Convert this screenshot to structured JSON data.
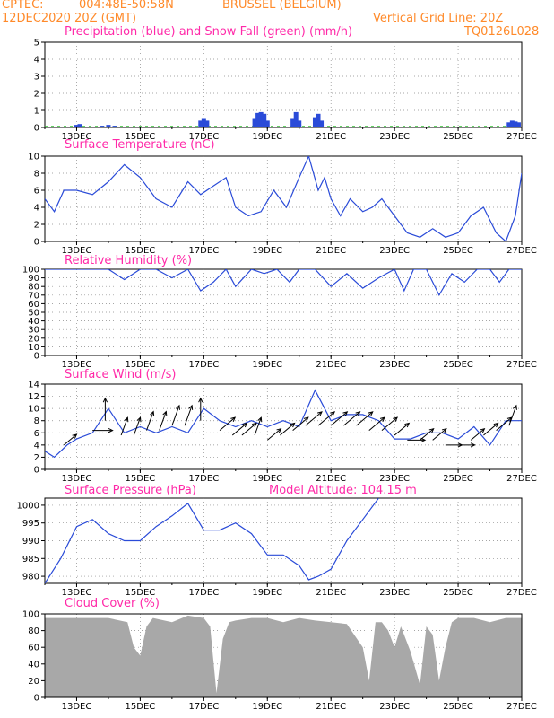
{
  "header": {
    "source": "CPTEC:",
    "coords": "004:48E-50:58N",
    "station": "BRUSSEL (BELGIUM)",
    "date": "12DEC2020 20Z (GMT)",
    "grid_line": "Vertical Grid Line: 20Z",
    "code": "TQ0126L028"
  },
  "x_ticks": [
    "13DEC",
    "15DEC",
    "17DEC",
    "19DEC",
    "21DEC",
    "23DEC",
    "25DEC",
    "27DEC"
  ],
  "colors": {
    "line": "#2a4bd8",
    "snow": "#2fbf2f",
    "title": "#ff2aa8",
    "header": "#ff8a2a",
    "cloud": "#a8a8a8"
  },
  "panels": [
    {
      "key": "precip",
      "title": "Precipitation (blue) and Snow Fall (green) (mm/h)"
    },
    {
      "key": "temp",
      "title": "Surface Temperature (nC)"
    },
    {
      "key": "rh",
      "title": "Relative Humidity (%)"
    },
    {
      "key": "wind",
      "title": "Surface Wind (m/s)"
    },
    {
      "key": "pressure",
      "title": "Surface Pressure (hPa)",
      "extra": "Model Altitude: 104.15 m"
    },
    {
      "key": "cloud",
      "title": "Cloud Cover (%)"
    }
  ],
  "chart_data": [
    {
      "type": "bar",
      "title": "Precipitation (blue) and Snow Fall (green) (mm/h)",
      "ylim": [
        0,
        5
      ],
      "yticks": [
        0,
        1,
        2,
        3,
        4,
        5
      ],
      "x_day_range": [
        12.0,
        27.0
      ],
      "x": [
        13.0,
        13.1,
        13.8,
        14.0,
        14.2,
        16.9,
        17.0,
        17.1,
        18.6,
        18.7,
        18.8,
        18.9,
        19.0,
        19.8,
        19.9,
        20.0,
        20.5,
        20.6,
        20.7,
        26.6,
        26.7,
        26.8,
        26.9
      ],
      "values": [
        0.15,
        0.2,
        0.1,
        0.15,
        0.1,
        0.4,
        0.5,
        0.4,
        0.5,
        0.85,
        0.9,
        0.8,
        0.4,
        0.5,
        0.9,
        0.4,
        0.6,
        0.8,
        0.4,
        0.3,
        0.4,
        0.35,
        0.3
      ],
      "snow_level": 0.05
    },
    {
      "type": "line",
      "title": "Surface Temperature (nC)",
      "ylim": [
        0,
        10
      ],
      "yticks": [
        0,
        2,
        4,
        6,
        8,
        10
      ],
      "x_day_range": [
        12.0,
        27.0
      ],
      "x": [
        12.0,
        12.3,
        12.6,
        13.0,
        13.5,
        14.0,
        14.5,
        15.0,
        15.5,
        16.0,
        16.5,
        16.9,
        17.3,
        17.7,
        18.0,
        18.4,
        18.8,
        19.2,
        19.6,
        20.0,
        20.3,
        20.6,
        20.8,
        21.0,
        21.3,
        21.6,
        22.0,
        22.3,
        22.6,
        23.0,
        23.4,
        23.8,
        24.2,
        24.6,
        25.0,
        25.4,
        25.8,
        26.2,
        26.5,
        26.8,
        27.0
      ],
      "values": [
        5,
        3.5,
        6,
        6,
        5.5,
        7,
        9,
        7.5,
        5,
        4,
        7,
        5.5,
        6.5,
        7.5,
        4,
        3,
        3.5,
        6,
        4,
        7.5,
        10,
        6,
        7.5,
        5,
        3,
        5,
        3.5,
        4,
        5,
        3,
        1,
        0.5,
        1.5,
        0.5,
        1,
        3,
        4,
        1,
        0,
        3,
        8
      ]
    },
    {
      "type": "line",
      "title": "Relative Humidity (%)",
      "ylim": [
        0,
        100
      ],
      "yticks": [
        0,
        10,
        20,
        30,
        40,
        50,
        60,
        70,
        80,
        90,
        100
      ],
      "x_day_range": [
        12.0,
        27.0
      ],
      "x": [
        12.0,
        13.0,
        13.5,
        14.0,
        14.5,
        15.0,
        15.5,
        16.0,
        16.5,
        16.9,
        17.3,
        17.7,
        18.0,
        18.5,
        18.9,
        19.3,
        19.7,
        20.0,
        20.5,
        21.0,
        21.5,
        22.0,
        22.5,
        23.0,
        23.3,
        23.6,
        24.0,
        24.4,
        24.8,
        25.2,
        25.6,
        26.0,
        26.3,
        26.6,
        27.0
      ],
      "values": [
        100,
        100,
        100,
        100,
        88,
        100,
        100,
        90,
        100,
        75,
        85,
        100,
        80,
        100,
        95,
        100,
        85,
        100,
        100,
        80,
        95,
        78,
        90,
        100,
        75,
        100,
        100,
        70,
        95,
        85,
        100,
        100,
        85,
        100,
        100
      ]
    },
    {
      "type": "line",
      "title": "Surface Wind (m/s)",
      "ylim": [
        0,
        14
      ],
      "yticks": [
        0,
        2,
        4,
        6,
        8,
        10,
        12,
        14
      ],
      "x_day_range": [
        12.0,
        27.0
      ],
      "x": [
        12.0,
        12.3,
        12.7,
        13.0,
        13.5,
        14.0,
        14.5,
        15.0,
        15.5,
        16.0,
        16.5,
        17.0,
        17.5,
        18.0,
        18.5,
        19.0,
        19.5,
        20.0,
        20.5,
        21.0,
        21.5,
        22.0,
        22.5,
        23.0,
        23.5,
        24.0,
        24.5,
        25.0,
        25.5,
        26.0,
        26.5,
        27.0
      ],
      "values": [
        3,
        2,
        4,
        5,
        6,
        10,
        6,
        7,
        6,
        7,
        6,
        10,
        8,
        7,
        8,
        7,
        8,
        7,
        13,
        8,
        9,
        9,
        8,
        5,
        5,
        6,
        6,
        5,
        7,
        4,
        8,
        8
      ],
      "arrows": [
        {
          "day": 12.6,
          "speed": 5,
          "dir": "SW"
        },
        {
          "day": 13.5,
          "speed": 8,
          "dir": "W"
        },
        {
          "day": 13.9,
          "speed": 10,
          "dir": "S"
        },
        {
          "day": 14.4,
          "speed": 7,
          "dir": "SSW"
        },
        {
          "day": 14.8,
          "speed": 7,
          "dir": "SSW"
        },
        {
          "day": 15.2,
          "speed": 8,
          "dir": "SSW"
        },
        {
          "day": 15.6,
          "speed": 8,
          "dir": "SSW"
        },
        {
          "day": 16.0,
          "speed": 9,
          "dir": "SSW"
        },
        {
          "day": 16.4,
          "speed": 9,
          "dir": "SSW"
        },
        {
          "day": 16.9,
          "speed": 10,
          "dir": "S"
        },
        {
          "day": 17.5,
          "speed": 8,
          "dir": "SW"
        },
        {
          "day": 17.9,
          "speed": 7,
          "dir": "SW"
        },
        {
          "day": 18.2,
          "speed": 7,
          "dir": "SW"
        },
        {
          "day": 18.6,
          "speed": 7,
          "dir": "SSW"
        },
        {
          "day": 19.0,
          "speed": 6,
          "dir": "SW"
        },
        {
          "day": 19.4,
          "speed": 7,
          "dir": "SW"
        },
        {
          "day": 19.8,
          "speed": 8,
          "dir": "SW"
        },
        {
          "day": 20.2,
          "speed": 9,
          "dir": "SW"
        },
        {
          "day": 20.6,
          "speed": 9,
          "dir": "SW"
        },
        {
          "day": 21.0,
          "speed": 9,
          "dir": "SW"
        },
        {
          "day": 21.4,
          "speed": 9,
          "dir": "SW"
        },
        {
          "day": 21.8,
          "speed": 9,
          "dir": "SW"
        },
        {
          "day": 22.2,
          "speed": 8,
          "dir": "SW"
        },
        {
          "day": 22.6,
          "speed": 8,
          "dir": "SW"
        },
        {
          "day": 23.0,
          "speed": 7,
          "dir": "SW"
        },
        {
          "day": 23.4,
          "speed": 6,
          "dir": "W"
        },
        {
          "day": 23.8,
          "speed": 6,
          "dir": "SW"
        },
        {
          "day": 24.2,
          "speed": 6,
          "dir": "SW"
        },
        {
          "day": 24.6,
          "speed": 5,
          "dir": "W"
        },
        {
          "day": 25.0,
          "speed": 5,
          "dir": "W"
        },
        {
          "day": 25.4,
          "speed": 6,
          "dir": "SW"
        },
        {
          "day": 25.8,
          "speed": 7,
          "dir": "SW"
        },
        {
          "day": 26.2,
          "speed": 8,
          "dir": "SW"
        },
        {
          "day": 26.6,
          "speed": 9,
          "dir": "SSW"
        }
      ]
    },
    {
      "type": "line",
      "title": "Surface Pressure (hPa)",
      "ylim": [
        978,
        1002
      ],
      "yticks": [
        980,
        985,
        990,
        995,
        1000
      ],
      "x_day_range": [
        12.0,
        27.0
      ],
      "x": [
        12.0,
        12.5,
        13.0,
        13.5,
        14.0,
        14.5,
        15.0,
        15.5,
        16.0,
        16.5,
        17.0,
        17.5,
        18.0,
        18.5,
        19.0,
        19.5,
        20.0,
        20.3,
        20.6,
        21.0,
        21.5,
        22.0,
        22.5
      ],
      "values": [
        978,
        985,
        994,
        996,
        992,
        990,
        990,
        994,
        997,
        1000.5,
        993,
        993,
        995,
        992,
        986,
        986,
        983,
        979,
        980,
        982,
        990,
        996,
        1002
      ]
    },
    {
      "type": "area",
      "title": "Cloud Cover (%)",
      "ylim": [
        0,
        100
      ],
      "yticks": [
        0,
        20,
        40,
        60,
        80,
        100
      ],
      "x_day_range": [
        12.0,
        27.0
      ],
      "x": [
        12.0,
        14.0,
        14.6,
        14.8,
        15.0,
        15.2,
        15.4,
        16.0,
        16.5,
        17.0,
        17.2,
        17.4,
        17.6,
        17.8,
        18.0,
        18.5,
        19.0,
        19.5,
        20.0,
        20.5,
        21.0,
        21.5,
        22.0,
        22.2,
        22.4,
        22.6,
        22.8,
        23.0,
        23.2,
        23.5,
        23.8,
        24.0,
        24.2,
        24.4,
        24.6,
        24.8,
        25.0,
        25.5,
        26.0,
        26.5,
        27.0
      ],
      "values": [
        95,
        95,
        90,
        60,
        50,
        85,
        95,
        90,
        98,
        95,
        85,
        5,
        70,
        90,
        92,
        95,
        95,
        90,
        95,
        92,
        90,
        88,
        60,
        20,
        90,
        90,
        80,
        60,
        85,
        55,
        15,
        85,
        75,
        20,
        60,
        90,
        95,
        95,
        90,
        95,
        95
      ]
    }
  ]
}
